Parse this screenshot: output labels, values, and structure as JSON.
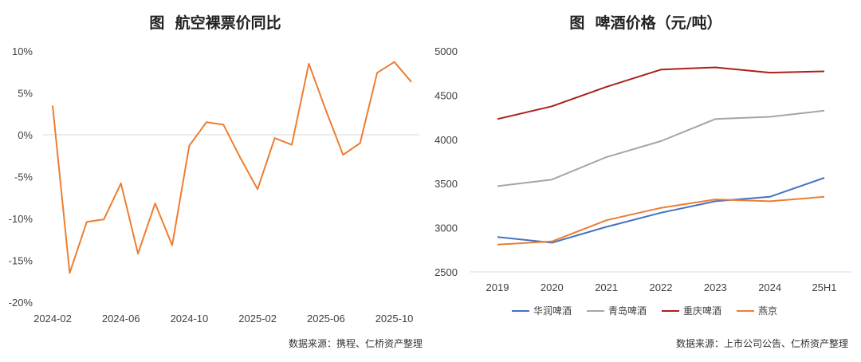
{
  "chart_data": [
    {
      "type": "line",
      "title": "图  航空裸票价同比",
      "source": "数据来源：携程、仁桥资产整理",
      "x": [
        "2024-02",
        "2024-03",
        "2024-04",
        "2024-05",
        "2024-06",
        "2024-07",
        "2024-08",
        "2024-09",
        "2024-10",
        "2024-11",
        "2024-12",
        "2025-01",
        "2025-02",
        "2025-03",
        "2025-04",
        "2025-05",
        "2025-06",
        "2025-07",
        "2025-08",
        "2025-09",
        "2025-10",
        "2025-11"
      ],
      "x_tick_labels": [
        "2024-02",
        "2024-06",
        "2024-10",
        "2025-02",
        "2025-06",
        "2025-10"
      ],
      "y_tick_labels": [
        "10%",
        "5%",
        "0%",
        "-5%",
        "-10%",
        "-15%",
        "-20%"
      ],
      "ylim": [
        -20,
        10
      ],
      "grid": "zero-line only",
      "series": [
        {
          "color": "#ED7D31",
          "values": [
            3.5,
            -16.5,
            -10.4,
            -10.1,
            -5.8,
            -14.2,
            -8.2,
            -13.2,
            -1.3,
            1.5,
            1.2,
            -2.8,
            -6.5,
            -0.4,
            -1.2,
            8.5,
            2.9,
            -2.4,
            -1.0,
            7.4,
            8.7,
            6.3
          ]
        }
      ]
    },
    {
      "type": "line",
      "title": "图  啤酒价格（元/吨）",
      "source": "数据来源：上市公司公告、仁桥资产整理",
      "categories": [
        "2019",
        "2020",
        "2021",
        "2022",
        "2023",
        "2024",
        "25H1"
      ],
      "y_tick_labels": [
        "5000",
        "4500",
        "4000",
        "3500",
        "3000",
        "2500"
      ],
      "ylim": [
        2500,
        5000
      ],
      "legend": "bottom",
      "series": [
        {
          "name": "华润啤酒",
          "color": "#4472C4",
          "values": [
            2895,
            2830,
            3010,
            3170,
            3300,
            3350,
            3565
          ]
        },
        {
          "name": "青岛啤酒",
          "color": "#A5A5A5",
          "values": [
            3470,
            3545,
            3800,
            3980,
            4230,
            4255,
            4325
          ]
        },
        {
          "name": "重庆啤酒",
          "color": "#A9201C",
          "values": [
            4230,
            4375,
            4595,
            4790,
            4815,
            4755,
            4770
          ]
        },
        {
          "name": "燕京",
          "color": "#ED7D31",
          "values": [
            2810,
            2845,
            3085,
            3225,
            3320,
            3300,
            3350
          ]
        }
      ]
    }
  ]
}
